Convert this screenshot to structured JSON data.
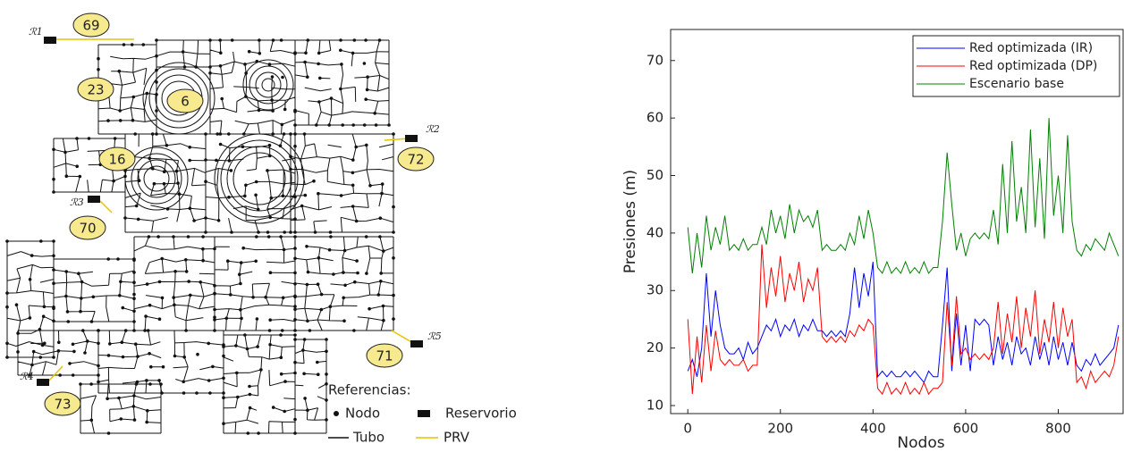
{
  "network": {
    "prv_labels": [
      "69",
      "23",
      "6",
      "16",
      "72",
      "70",
      "71",
      "73"
    ],
    "reservoirs": [
      "ℛ1",
      "ℛ2",
      "ℛ3",
      "ℛ4",
      "ℛ5"
    ],
    "legend": {
      "title": "Referencias:",
      "items": [
        "Nodo",
        "Reservorio",
        "Tubo",
        "PRV"
      ]
    }
  },
  "chart_data": {
    "type": "line",
    "xlabel": "Nodos",
    "ylabel": "Presiones (m)",
    "xlim": [
      -37,
      940
    ],
    "ylim": [
      8.6,
      75.4
    ],
    "xticks": [
      0,
      200,
      400,
      600,
      800
    ],
    "yticks": [
      10,
      20,
      30,
      40,
      50,
      60,
      70
    ],
    "legend": "top-right",
    "x": [
      0,
      10,
      20,
      30,
      40,
      50,
      60,
      70,
      80,
      90,
      100,
      110,
      120,
      130,
      140,
      150,
      160,
      170,
      180,
      190,
      200,
      210,
      220,
      230,
      240,
      250,
      260,
      270,
      280,
      290,
      300,
      310,
      320,
      330,
      340,
      350,
      360,
      370,
      380,
      390,
      400,
      410,
      420,
      430,
      440,
      450,
      460,
      470,
      480,
      490,
      500,
      510,
      520,
      530,
      540,
      550,
      560,
      570,
      580,
      590,
      600,
      610,
      620,
      630,
      640,
      650,
      660,
      670,
      680,
      690,
      700,
      710,
      720,
      730,
      740,
      750,
      760,
      770,
      780,
      790,
      800,
      810,
      820,
      830,
      840,
      850,
      860,
      870,
      880,
      890,
      900,
      910,
      920,
      930
    ],
    "series": [
      {
        "name": "Red optimizada (IR)",
        "color": "#0000ff",
        "values": [
          16,
          18,
          15,
          20,
          33,
          22,
          30,
          24,
          20,
          19,
          19,
          20,
          18,
          21,
          19,
          20,
          22,
          24,
          23,
          25,
          22,
          24,
          23,
          25,
          22,
          24,
          23,
          25,
          23,
          23,
          22,
          23,
          22,
          23,
          22,
          26,
          34,
          27,
          33,
          29,
          35,
          15,
          16,
          15,
          16,
          15,
          15,
          16,
          15,
          16,
          15,
          14,
          16,
          15,
          15,
          24,
          34,
          16,
          26,
          17,
          24,
          16,
          25,
          24,
          25,
          24,
          17,
          22,
          18,
          21,
          17,
          22,
          19,
          20,
          17,
          22,
          18,
          21,
          17,
          22,
          18,
          21,
          17,
          21,
          17,
          16,
          18,
          17,
          19,
          17,
          18,
          19,
          20,
          24
        ]
      },
      {
        "name": "Red optimizada (DP)",
        "color": "#ff0000",
        "values": [
          25,
          12,
          22,
          14,
          24,
          16,
          23,
          18,
          17,
          18,
          17,
          17,
          18,
          16,
          17,
          17,
          38,
          27,
          34,
          29,
          36,
          28,
          33,
          30,
          35,
          28,
          32,
          30,
          34,
          22,
          21,
          22,
          21,
          22,
          21,
          23,
          22,
          24,
          23,
          25,
          24,
          13,
          12,
          14,
          12,
          13,
          12,
          14,
          12,
          13,
          12,
          14,
          12,
          13,
          13,
          14,
          28,
          17,
          29,
          19,
          20,
          18,
          19,
          18,
          19,
          18,
          20,
          28,
          19,
          26,
          21,
          29,
          20,
          27,
          22,
          30,
          19,
          25,
          21,
          28,
          20,
          27,
          22,
          25,
          14,
          15,
          13,
          16,
          14,
          15,
          16,
          15,
          17,
          22
        ]
      },
      {
        "name": "Escenario base",
        "color": "#008000",
        "values": [
          41,
          33,
          40,
          34,
          43,
          37,
          41,
          38,
          43,
          37,
          38,
          37,
          39,
          37,
          38,
          38,
          41,
          38,
          44,
          40,
          43,
          39,
          45,
          40,
          44,
          42,
          43,
          41,
          44,
          37,
          38,
          37,
          37,
          38,
          37,
          40,
          38,
          43,
          39,
          44,
          40,
          34,
          33,
          35,
          33,
          34,
          33,
          35,
          33,
          34,
          33,
          35,
          33,
          34,
          34,
          42,
          54,
          45,
          37,
          40,
          36,
          39,
          40,
          39,
          40,
          39,
          44,
          38,
          52,
          40,
          56,
          42,
          48,
          40,
          58,
          41,
          53,
          39,
          60,
          43,
          50,
          40,
          57,
          42,
          37,
          36,
          38,
          37,
          39,
          38,
          37,
          40,
          38,
          36
        ]
      }
    ]
  }
}
